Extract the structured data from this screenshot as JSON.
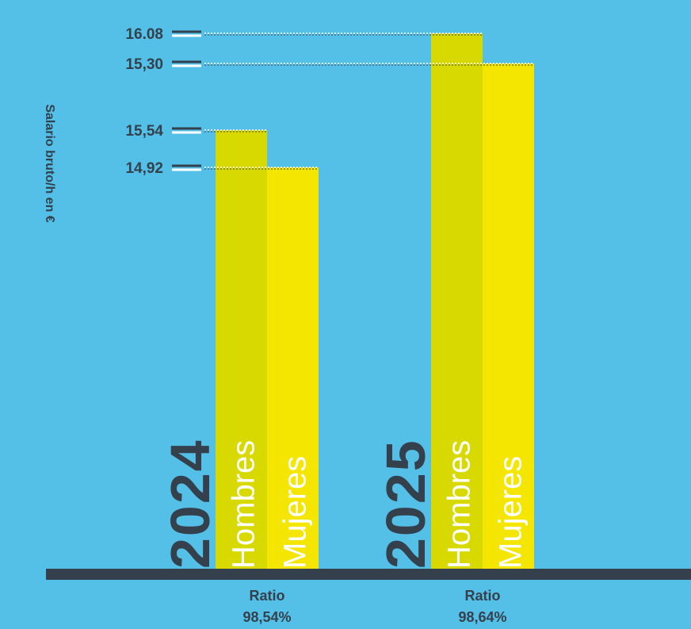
{
  "colors": {
    "background": "#54c0e8",
    "dark": "#34404b",
    "hombres": "#d7d900",
    "mujeres": "#f4e600",
    "white": "#ffffff"
  },
  "chart_data": {
    "type": "bar",
    "ylabel": "Salario bruto/h en €",
    "categories": [
      "2024",
      "2025"
    ],
    "series": [
      {
        "name": "Hombres",
        "values": [
          15.54,
          16.08
        ]
      },
      {
        "name": "Mujeres",
        "values": [
          14.92,
          15.3
        ]
      }
    ],
    "value_labels": {
      "Hombres": [
        "15,54",
        "16.08"
      ],
      "Mujeres": [
        "14,92",
        "15,30"
      ]
    },
    "ratios": [
      {
        "label": "Ratio",
        "value": "98,54%"
      },
      {
        "label": "Ratio",
        "value": "98,64%"
      }
    ],
    "ylim": [
      0,
      16.08
    ]
  }
}
